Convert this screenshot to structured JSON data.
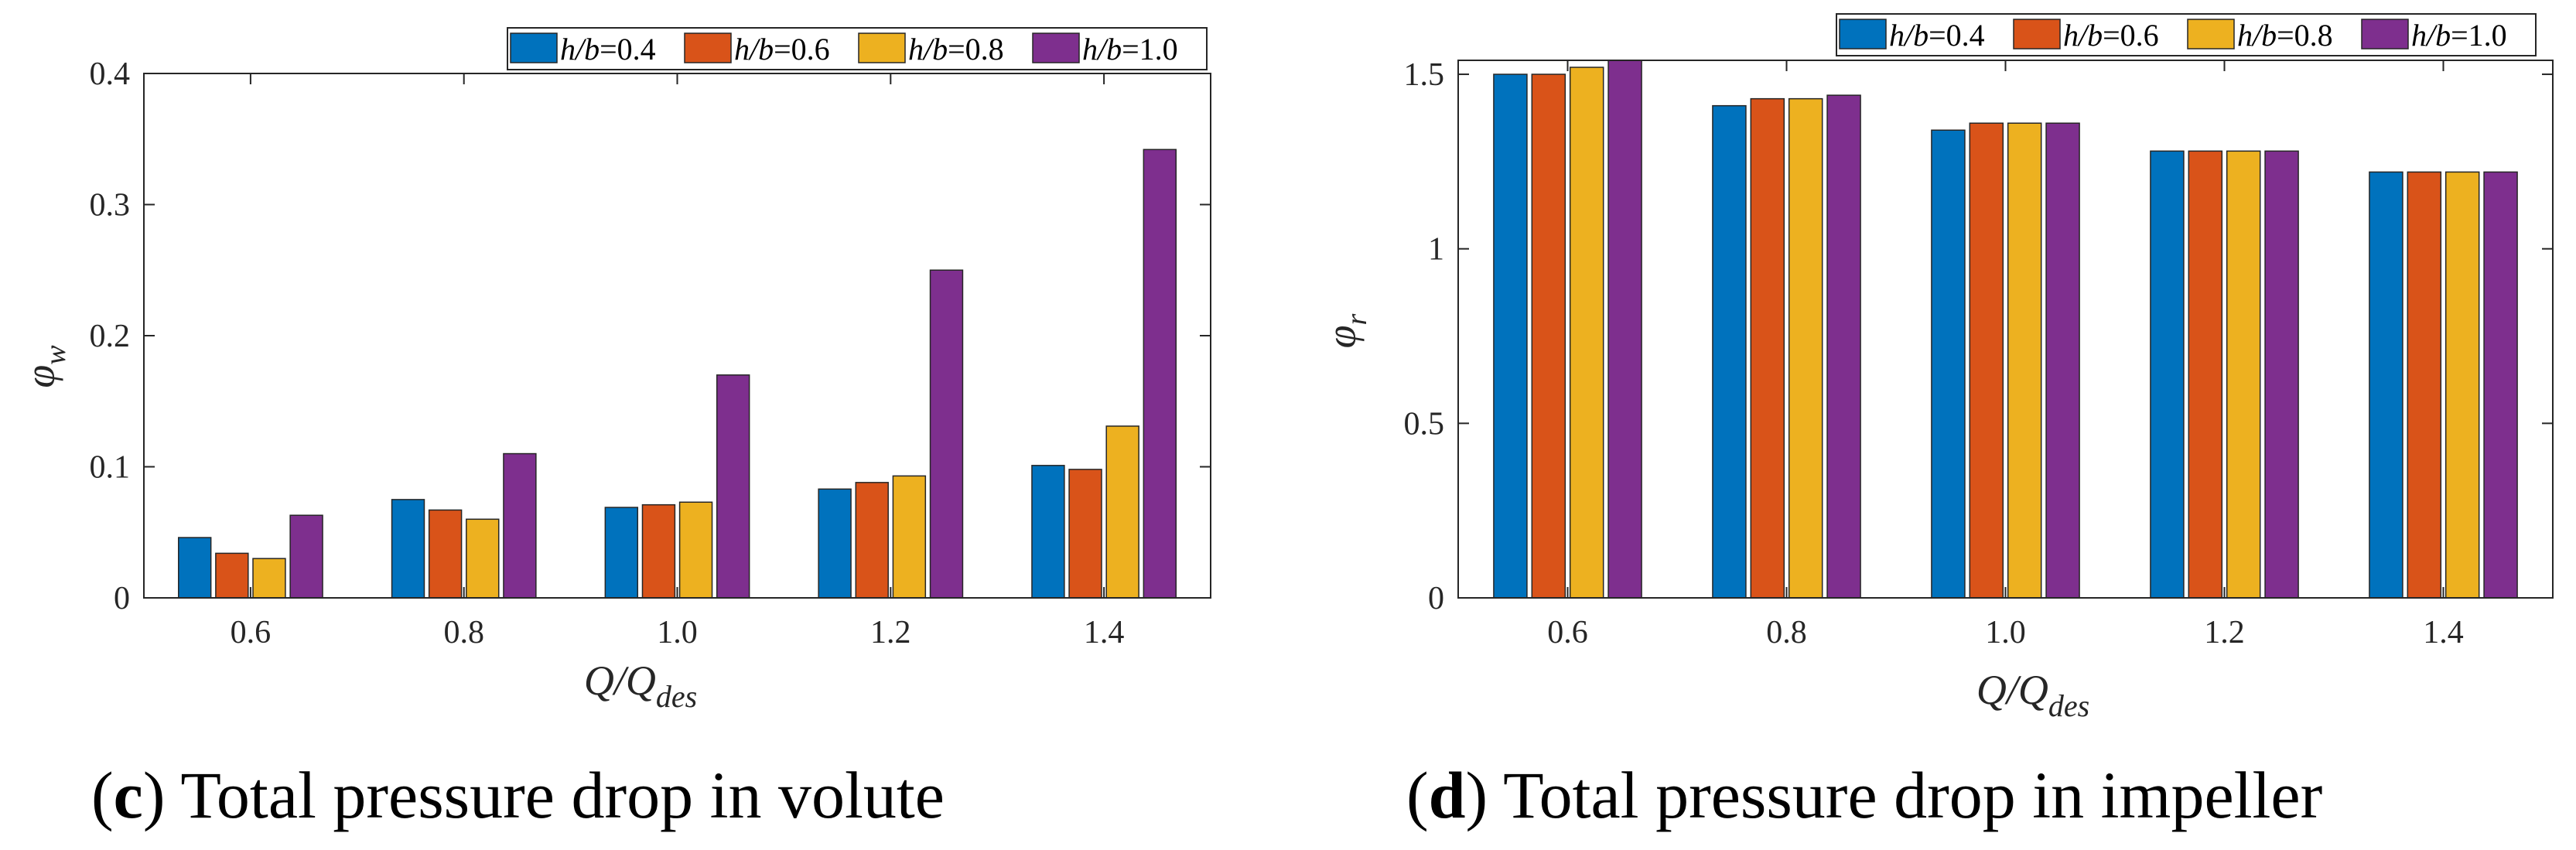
{
  "chart_data": [
    {
      "type": "bar",
      "id": "c",
      "categories": [
        "0.6",
        "0.8",
        "1.0",
        "1.2",
        "1.4"
      ],
      "series": [
        {
          "name": "h/b=0.4",
          "label_var": "h/b",
          "label_val": "=0.4",
          "color": "#0072BD",
          "values": [
            0.046,
            0.075,
            0.069,
            0.083,
            0.101
          ]
        },
        {
          "name": "h/b=0.6",
          "label_var": "h/b",
          "label_val": "=0.6",
          "color": "#D95319",
          "values": [
            0.034,
            0.067,
            0.071,
            0.088,
            0.098
          ]
        },
        {
          "name": "h/b=0.8",
          "label_var": "h/b",
          "label_val": "=0.8",
          "color": "#EDB120",
          "values": [
            0.03,
            0.06,
            0.073,
            0.093,
            0.131
          ]
        },
        {
          "name": "h/b=1.0",
          "label_var": "h/b",
          "label_val": "=1.0",
          "color": "#7E2F8E",
          "values": [
            0.063,
            0.11,
            0.17,
            0.25,
            0.342
          ]
        }
      ],
      "ylim": [
        0,
        0.4
      ],
      "yticks": [
        0,
        0.1,
        0.2,
        0.3,
        0.4
      ],
      "ytick_labels": [
        "0",
        "0.1",
        "0.2",
        "0.3",
        "0.4"
      ],
      "ylabel_main": "φ",
      "ylabel_sub": "w",
      "xlabel_main": "Q/Q",
      "xlabel_sub": "des",
      "legend_position": "top-right",
      "caption_letter": "c",
      "caption_text": "Total pressure drop in volute"
    },
    {
      "type": "bar",
      "id": "d",
      "categories": [
        "0.6",
        "0.8",
        "1.0",
        "1.2",
        "1.4"
      ],
      "series": [
        {
          "name": "h/b=0.4",
          "label_var": "h/b",
          "label_val": "=0.4",
          "color": "#0072BD",
          "values": [
            1.5,
            1.41,
            1.34,
            1.28,
            1.22
          ]
        },
        {
          "name": "h/b=0.6",
          "label_var": "h/b",
          "label_val": "=0.6",
          "color": "#D95319",
          "values": [
            1.5,
            1.43,
            1.36,
            1.28,
            1.22
          ]
        },
        {
          "name": "h/b=0.8",
          "label_var": "h/b",
          "label_val": "=0.8",
          "color": "#EDB120",
          "values": [
            1.52,
            1.43,
            1.36,
            1.28,
            1.22
          ]
        },
        {
          "name": "h/b=1.0",
          "label_var": "h/b",
          "label_val": "=1.0",
          "color": "#7E2F8E",
          "values": [
            1.54,
            1.44,
            1.36,
            1.28,
            1.22
          ]
        }
      ],
      "ylim": [
        0,
        1.54
      ],
      "yticks": [
        0,
        0.5,
        1,
        1.5
      ],
      "ytick_labels": [
        "0",
        "0.5",
        "1",
        "1.5"
      ],
      "ylabel_main": "φ",
      "ylabel_sub": "r",
      "xlabel_main": "Q/Q",
      "xlabel_sub": "des",
      "legend_position": "top-right",
      "caption_letter": "d",
      "caption_text": "Total pressure drop in impeller"
    }
  ]
}
